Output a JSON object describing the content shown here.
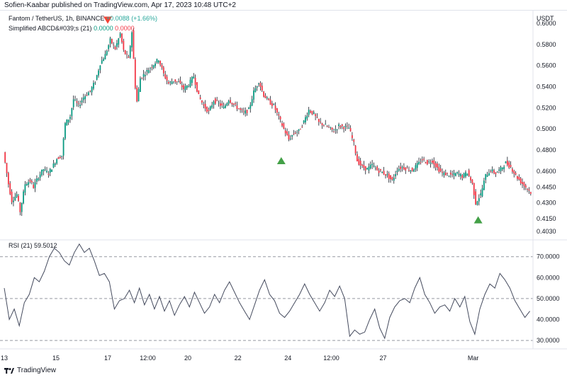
{
  "publisher_line": "Sofien-Kaabar published on TradingView.com, Apr 17, 2023 10:48 UTC+2",
  "main_legend": {
    "symbol": "Fantom / TetherUS, 1h, BINANCE",
    "change": "+0.0088 (+1.66%)",
    "indicator_name": "Simplified ABCD&#039;s (21)",
    "indicator_val1": "0.0000",
    "indicator_val2": "0.0000"
  },
  "rsi_legend": {
    "name": "RSI (21)",
    "value": "59.5012"
  },
  "footer_brand": "TradingView",
  "colors": {
    "up": "#089981",
    "down": "#f23645",
    "wick": "#131722",
    "signal_up": "#43a047",
    "signal_down": "#f44336",
    "rsi_line": "#454b5e",
    "grid_dash": "#9598a1"
  },
  "chart_data": [
    {
      "type": "candlestick",
      "title": "Fantom / TetherUS, 1h, BINANCE",
      "y_axis_unit": "USDT",
      "y_ticks": [
        "0.6000",
        "0.5800",
        "0.5600",
        "0.5400",
        "0.5200",
        "0.5000",
        "0.4800",
        "0.4600",
        "0.4450",
        "0.4300",
        "0.4150",
        "0.4030"
      ],
      "ylim": [
        0.395,
        0.612
      ],
      "x_ticks": [
        "13",
        "15",
        "17",
        "12:00",
        "20",
        "22",
        "24",
        "12:00",
        "27",
        "Mar"
      ],
      "price_path": [
        [
          0,
          0.478
        ],
        [
          3,
          0.448
        ],
        [
          5,
          0.432
        ],
        [
          8,
          0.438
        ],
        [
          10,
          0.422
        ],
        [
          13,
          0.448
        ],
        [
          16,
          0.451
        ],
        [
          18,
          0.445
        ],
        [
          21,
          0.455
        ],
        [
          24,
          0.462
        ],
        [
          27,
          0.458
        ],
        [
          30,
          0.466
        ],
        [
          32,
          0.472
        ],
        [
          35,
          0.475
        ],
        [
          37,
          0.505
        ],
        [
          40,
          0.512
        ],
        [
          42,
          0.528
        ],
        [
          45,
          0.522
        ],
        [
          48,
          0.53
        ],
        [
          52,
          0.536
        ],
        [
          55,
          0.545
        ],
        [
          58,
          0.562
        ],
        [
          61,
          0.57
        ],
        [
          64,
          0.584
        ],
        [
          67,
          0.576
        ],
        [
          70,
          0.59
        ],
        [
          72,
          0.574
        ],
        [
          75,
          0.566
        ],
        [
          77,
          0.592
        ],
        [
          79,
          0.54
        ],
        [
          80,
          0.526
        ],
        [
          82,
          0.548
        ],
        [
          85,
          0.553
        ],
        [
          88,
          0.558
        ],
        [
          91,
          0.563
        ],
        [
          93,
          0.566
        ],
        [
          96,
          0.552
        ],
        [
          99,
          0.543
        ],
        [
          102,
          0.546
        ],
        [
          105,
          0.544
        ],
        [
          108,
          0.538
        ],
        [
          111,
          0.542
        ],
        [
          114,
          0.55
        ],
        [
          117,
          0.531
        ],
        [
          120,
          0.522
        ],
        [
          123,
          0.516
        ],
        [
          126,
          0.527
        ],
        [
          129,
          0.524
        ],
        [
          132,
          0.52
        ],
        [
          135,
          0.528
        ],
        [
          138,
          0.523
        ],
        [
          141,
          0.519
        ],
        [
          144,
          0.515
        ],
        [
          147,
          0.518
        ],
        [
          150,
          0.535
        ],
        [
          153,
          0.545
        ],
        [
          156,
          0.532
        ],
        [
          159,
          0.526
        ],
        [
          162,
          0.522
        ],
        [
          165,
          0.511
        ],
        [
          168,
          0.5
        ],
        [
          171,
          0.49
        ],
        [
          174,
          0.496
        ],
        [
          177,
          0.498
        ],
        [
          180,
          0.507
        ],
        [
          183,
          0.518
        ],
        [
          186,
          0.514
        ],
        [
          189,
          0.506
        ],
        [
          192,
          0.504
        ],
        [
          195,
          0.501
        ],
        [
          198,
          0.498
        ],
        [
          201,
          0.503
        ],
        [
          204,
          0.502
        ],
        [
          207,
          0.501
        ],
        [
          210,
          0.486
        ],
        [
          212,
          0.47
        ],
        [
          215,
          0.464
        ],
        [
          218,
          0.462
        ],
        [
          221,
          0.466
        ],
        [
          224,
          0.461
        ],
        [
          227,
          0.459
        ],
        [
          230,
          0.456
        ],
        [
          233,
          0.451
        ],
        [
          236,
          0.462
        ],
        [
          239,
          0.464
        ],
        [
          242,
          0.462
        ],
        [
          245,
          0.461
        ],
        [
          248,
          0.466
        ],
        [
          251,
          0.471
        ],
        [
          254,
          0.468
        ],
        [
          257,
          0.47
        ],
        [
          260,
          0.463
        ],
        [
          263,
          0.458
        ],
        [
          266,
          0.457
        ],
        [
          269,
          0.456
        ],
        [
          272,
          0.458
        ],
        [
          275,
          0.455
        ],
        [
          278,
          0.459
        ],
        [
          281,
          0.448
        ],
        [
          283,
          0.43
        ],
        [
          286,
          0.438
        ],
        [
          289,
          0.456
        ],
        [
          292,
          0.461
        ],
        [
          295,
          0.458
        ],
        [
          298,
          0.462
        ],
        [
          301,
          0.468
        ],
        [
          304,
          0.464
        ],
        [
          307,
          0.456
        ],
        [
          310,
          0.45
        ],
        [
          313,
          0.445
        ],
        [
          316,
          0.44
        ]
      ],
      "signals": [
        {
          "type": "bearish",
          "x_index": 62,
          "price": 0.603
        },
        {
          "type": "bullish",
          "x_index": 166,
          "price": 0.47
        },
        {
          "type": "bullish",
          "x_index": 284,
          "price": 0.414
        }
      ]
    },
    {
      "type": "line",
      "title": "RSI (21)",
      "y_ticks": [
        "70.0000",
        "60.0000",
        "50.0000",
        "40.0000",
        "30.0000"
      ],
      "ylim": [
        26,
        78
      ],
      "reference_lines": [
        70,
        50,
        30
      ],
      "values": [
        [
          0,
          55
        ],
        [
          3,
          40
        ],
        [
          6,
          45
        ],
        [
          9,
          37
        ],
        [
          12,
          48
        ],
        [
          15,
          52
        ],
        [
          18,
          60
        ],
        [
          21,
          58
        ],
        [
          24,
          63
        ],
        [
          27,
          70
        ],
        [
          30,
          74
        ],
        [
          33,
          72
        ],
        [
          36,
          68
        ],
        [
          39,
          66
        ],
        [
          42,
          72
        ],
        [
          45,
          76
        ],
        [
          48,
          72
        ],
        [
          51,
          74
        ],
        [
          54,
          68
        ],
        [
          57,
          61
        ],
        [
          60,
          62
        ],
        [
          63,
          58
        ],
        [
          66,
          45
        ],
        [
          69,
          49
        ],
        [
          72,
          50
        ],
        [
          75,
          54
        ],
        [
          78,
          48
        ],
        [
          81,
          55
        ],
        [
          84,
          47
        ],
        [
          87,
          52
        ],
        [
          90,
          45
        ],
        [
          93,
          51
        ],
        [
          96,
          44
        ],
        [
          99,
          49
        ],
        [
          102,
          42
        ],
        [
          105,
          47
        ],
        [
          108,
          51
        ],
        [
          111,
          46
        ],
        [
          114,
          53
        ],
        [
          117,
          48
        ],
        [
          120,
          43
        ],
        [
          123,
          46
        ],
        [
          126,
          52
        ],
        [
          129,
          48
        ],
        [
          132,
          54
        ],
        [
          135,
          58
        ],
        [
          138,
          53
        ],
        [
          141,
          48
        ],
        [
          144,
          44
        ],
        [
          147,
          40
        ],
        [
          150,
          47
        ],
        [
          153,
          54
        ],
        [
          156,
          59
        ],
        [
          159,
          52
        ],
        [
          162,
          49
        ],
        [
          165,
          43
        ],
        [
          168,
          41
        ],
        [
          171,
          44
        ],
        [
          174,
          48
        ],
        [
          177,
          52
        ],
        [
          180,
          57
        ],
        [
          183,
          52
        ],
        [
          186,
          48
        ],
        [
          189,
          44
        ],
        [
          192,
          48
        ],
        [
          195,
          54
        ],
        [
          198,
          51
        ],
        [
          201,
          56
        ],
        [
          204,
          50
        ],
        [
          207,
          32
        ],
        [
          210,
          35
        ],
        [
          213,
          33
        ],
        [
          216,
          34
        ],
        [
          219,
          40
        ],
        [
          222,
          45
        ],
        [
          225,
          36
        ],
        [
          228,
          31
        ],
        [
          231,
          41
        ],
        [
          234,
          46
        ],
        [
          237,
          49
        ],
        [
          240,
          50
        ],
        [
          243,
          48
        ],
        [
          246,
          55
        ],
        [
          249,
          60
        ],
        [
          252,
          52
        ],
        [
          255,
          48
        ],
        [
          258,
          43
        ],
        [
          261,
          46
        ],
        [
          264,
          47
        ],
        [
          267,
          44
        ],
        [
          270,
          50
        ],
        [
          273,
          46
        ],
        [
          276,
          51
        ],
        [
          279,
          39
        ],
        [
          282,
          33
        ],
        [
          285,
          45
        ],
        [
          288,
          52
        ],
        [
          291,
          57
        ],
        [
          294,
          55
        ],
        [
          297,
          62
        ],
        [
          300,
          59
        ],
        [
          303,
          55
        ],
        [
          306,
          49
        ],
        [
          309,
          45
        ],
        [
          312,
          41
        ],
        [
          315,
          44
        ]
      ]
    }
  ]
}
